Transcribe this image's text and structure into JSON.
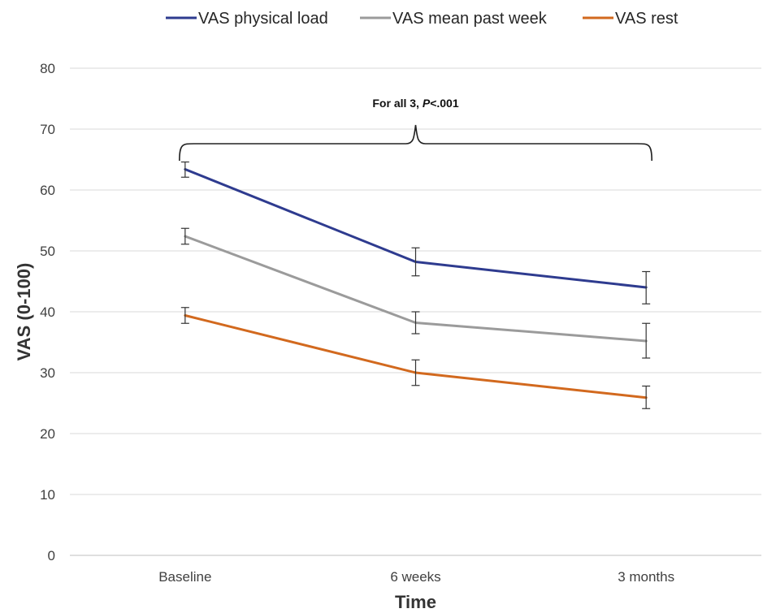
{
  "chart_data": {
    "type": "line",
    "title": "",
    "xlabel": "Time",
    "ylabel": "VAS (0-100)",
    "categories": [
      "Baseline",
      "6 weeks",
      "3 months"
    ],
    "ylim": [
      0,
      80
    ],
    "yticks": [
      0,
      10,
      20,
      30,
      40,
      50,
      60,
      70,
      80
    ],
    "grid": true,
    "legend_position": "top",
    "series": [
      {
        "name": "VAS physical load",
        "color": "#2E3B8F",
        "values": [
          63.4,
          48.2,
          44.0
        ],
        "error_low": [
          62.1,
          45.9,
          41.3
        ],
        "error_high": [
          64.6,
          50.5,
          46.6
        ]
      },
      {
        "name": "VAS mean past week",
        "color": "#9B9B9B",
        "values": [
          52.4,
          38.2,
          35.2
        ],
        "error_low": [
          51.1,
          36.4,
          32.4
        ],
        "error_high": [
          53.7,
          40.0,
          38.1
        ]
      },
      {
        "name": "VAS rest",
        "color": "#D2691E",
        "values": [
          39.4,
          30.0,
          25.9
        ],
        "error_low": [
          38.1,
          27.9,
          24.1
        ],
        "error_high": [
          40.7,
          32.1,
          27.8
        ]
      }
    ],
    "annotation": {
      "text_prefix": "For all 3, ",
      "text_italic": "P",
      "text_suffix": "<.001"
    }
  }
}
